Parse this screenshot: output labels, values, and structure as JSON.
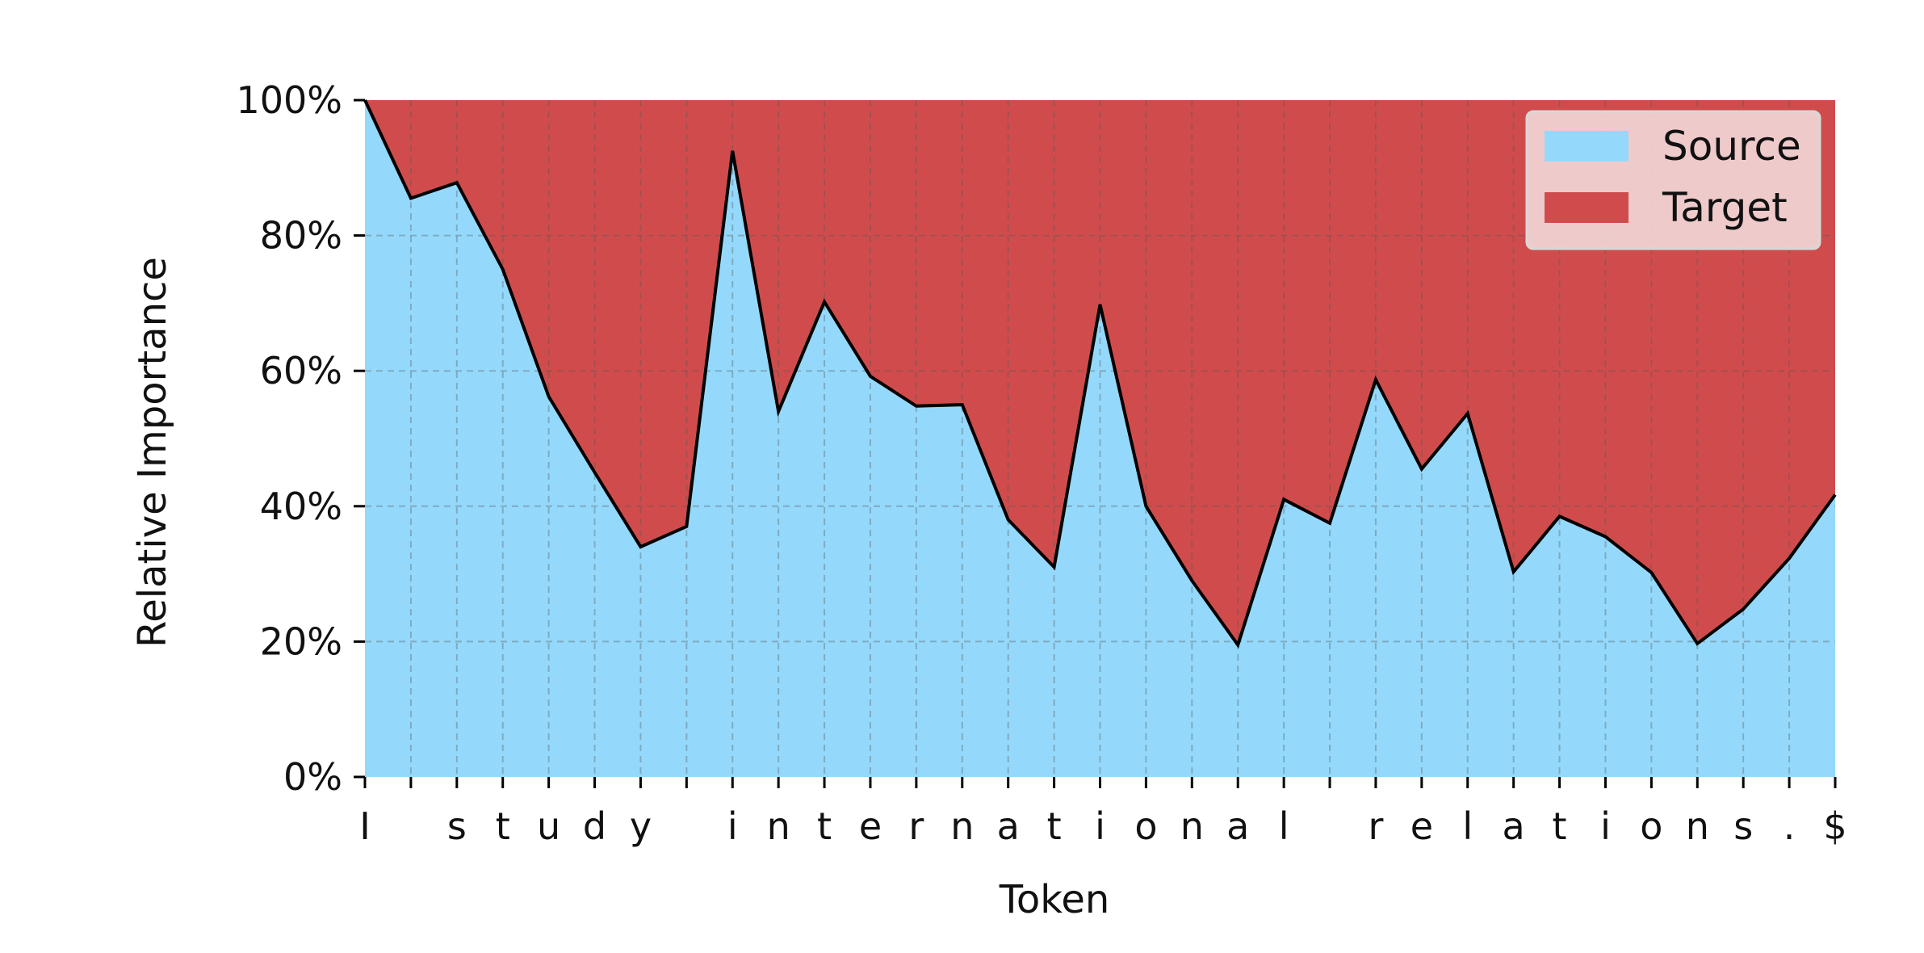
{
  "chart_data": {
    "type": "area",
    "stacked": true,
    "xlabel": "Token",
    "ylabel": "Relative Importance",
    "ylim": [
      0,
      1
    ],
    "y_ticks": [
      "0%",
      "20%",
      "40%",
      "60%",
      "80%",
      "100%"
    ],
    "y_tick_values": [
      0,
      0.2,
      0.4,
      0.6,
      0.8,
      1.0
    ],
    "grid": true,
    "legend_position": "top-right",
    "categories": [
      "I",
      " ",
      "s",
      "t",
      "u",
      "d",
      "y",
      " ",
      "i",
      "n",
      "t",
      "e",
      "r",
      "n",
      "a",
      "t",
      "i",
      "o",
      "n",
      "a",
      "l",
      " ",
      "r",
      "e",
      "l",
      "a",
      "t",
      "i",
      "o",
      "n",
      "s",
      ".",
      "$"
    ],
    "series": [
      {
        "name": "Source",
        "color": "#94d9fb",
        "values": [
          1.0,
          0.855,
          0.878,
          0.75,
          0.562,
          0.45,
          0.34,
          0.37,
          0.925,
          0.54,
          0.702,
          0.592,
          0.548,
          0.55,
          0.38,
          0.31,
          0.698,
          0.4,
          0.29,
          0.195,
          0.41,
          0.375,
          0.587,
          0.455,
          0.537,
          0.303,
          0.385,
          0.355,
          0.302,
          0.197,
          0.248,
          0.323,
          0.417
        ]
      },
      {
        "name": "Target",
        "color": "#d04c4c",
        "values": [
          0.0,
          0.145,
          0.122,
          0.25,
          0.438,
          0.55,
          0.66,
          0.63,
          0.075,
          0.46,
          0.298,
          0.408,
          0.452,
          0.45,
          0.62,
          0.69,
          0.302,
          0.6,
          0.71,
          0.805,
          0.59,
          0.625,
          0.413,
          0.545,
          0.463,
          0.697,
          0.615,
          0.645,
          0.698,
          0.803,
          0.752,
          0.677,
          0.583
        ]
      }
    ]
  }
}
